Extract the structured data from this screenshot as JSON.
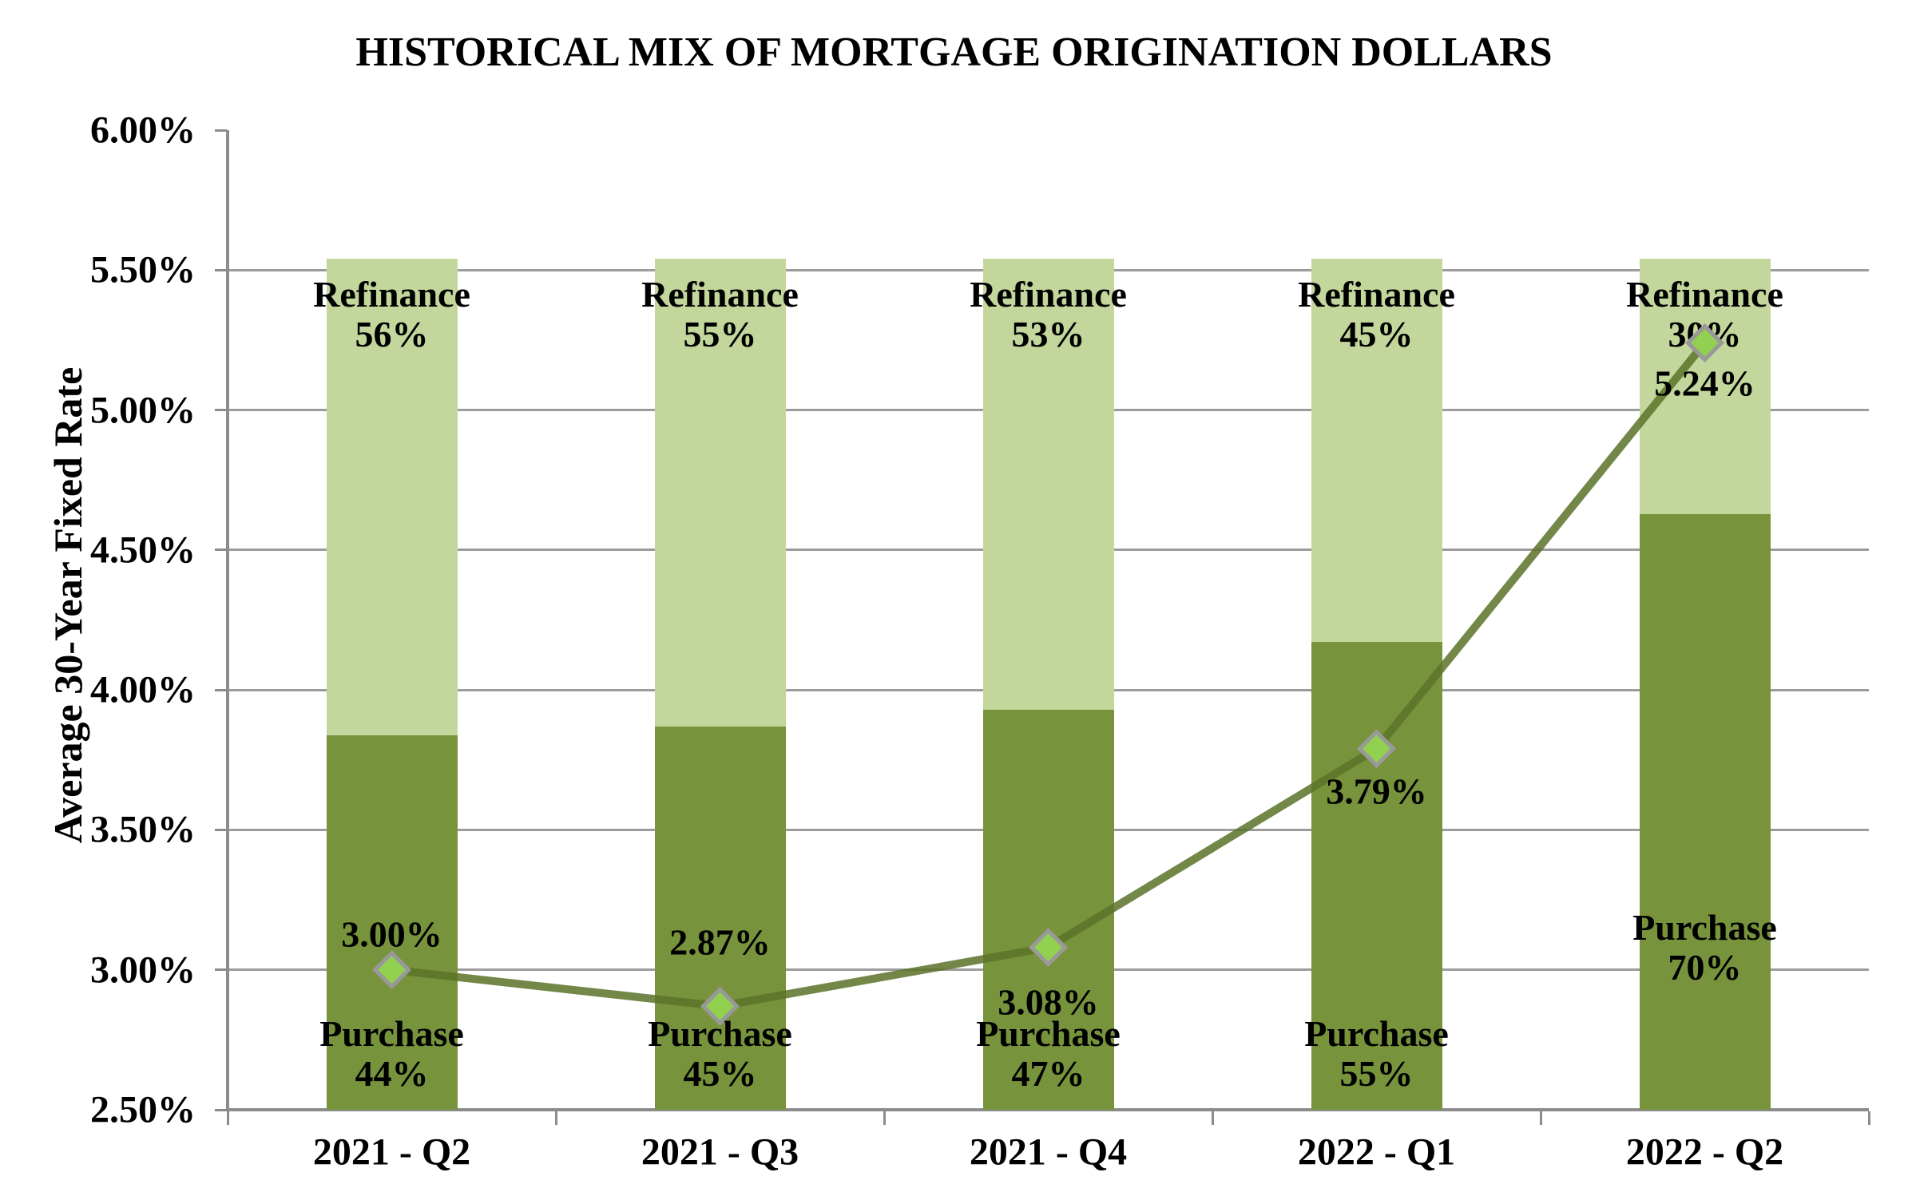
{
  "title": "HISTORICAL MIX OF MORTGAGE ORIGINATION DOLLARS",
  "y_axis": {
    "label": "Average 30-Year Fixed Rate",
    "tick_labels": [
      "6.00%",
      "5.50%",
      "5.00%",
      "4.50%",
      "4.00%",
      "3.50%",
      "3.00%",
      "2.50%"
    ],
    "tick_values": [
      6.0,
      5.5,
      5.0,
      4.5,
      4.0,
      3.5,
      3.0,
      2.5
    ]
  },
  "chart_data": {
    "type": "combo-stacked-bar-line",
    "title": "HISTORICAL MIX OF MORTGAGE ORIGINATION DOLLARS",
    "ylabel": "Average 30-Year Fixed Rate",
    "ylim": [
      2.5,
      6.0
    ],
    "ytick_step": 0.5,
    "grid": "horizontal-major",
    "gridline_values": [
      5.5,
      5.0,
      4.5,
      4.0,
      3.5,
      3.0
    ],
    "legend_position": "none",
    "categories": [
      "2021 - Q2",
      "2021 - Q3",
      "2021 - Q4",
      "2022 - Q1",
      "2022 - Q2"
    ],
    "bar_span": {
      "bottom_value": 2.5,
      "top_value": 5.54
    },
    "series": [
      {
        "name": "Purchase",
        "type": "bar-stacked",
        "values_pct": [
          44,
          45,
          47,
          55,
          70
        ],
        "segment_labels": [
          [
            "Purchase",
            "44%"
          ],
          [
            "Purchase",
            "45%"
          ],
          [
            "Purchase",
            "47%"
          ],
          [
            "Purchase",
            "55%"
          ],
          [
            "Purchase",
            "70%"
          ]
        ]
      },
      {
        "name": "Refinance",
        "type": "bar-stacked",
        "values_pct": [
          56,
          55,
          53,
          45,
          30
        ],
        "segment_labels": [
          [
            "Refinance",
            "56%"
          ],
          [
            "Refinance",
            "55%"
          ],
          [
            "Refinance",
            "53%"
          ],
          [
            "Refinance",
            "45%"
          ],
          [
            "Refinance",
            "30%"
          ]
        ]
      },
      {
        "name": "Average 30-Year Fixed Rate",
        "type": "line",
        "values": [
          3.0,
          2.87,
          3.08,
          3.79,
          5.24
        ],
        "point_labels": [
          "3.00%",
          "2.87%",
          "3.08%",
          "3.79%",
          "5.24%"
        ],
        "point_label_position": [
          "above",
          "above",
          "below",
          "below",
          "below"
        ],
        "marker": "diamond"
      }
    ]
  },
  "colors": {
    "purchase_bar": "#77933C",
    "refinance_bar": "#C3D69B",
    "line": "rgba(90,115,40,0.85)",
    "marker_fill": "#92D050",
    "marker_stroke": "#999999",
    "gridline": "#9C9C9C",
    "axis": "#8C8C8C",
    "text": "#000000"
  }
}
